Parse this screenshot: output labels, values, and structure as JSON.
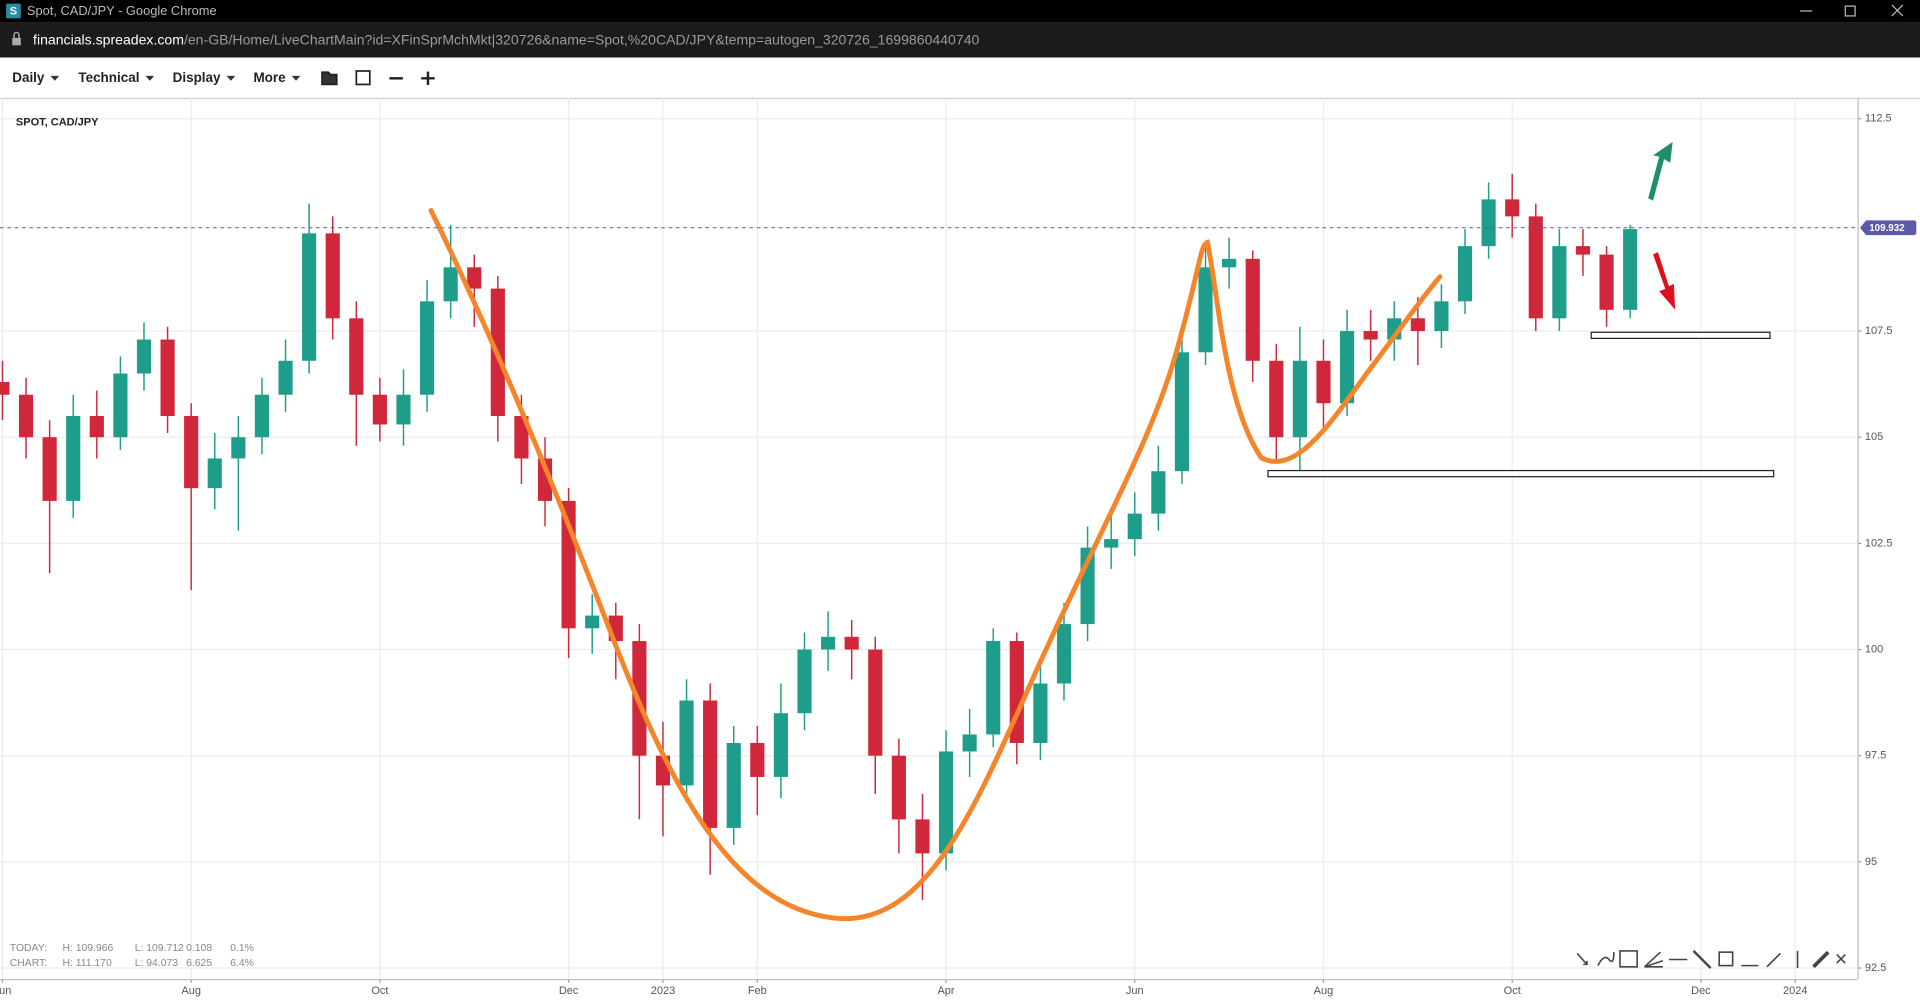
{
  "window": {
    "title": "Spot, CAD/JPY - Google Chrome"
  },
  "address_bar": {
    "domain": "financials.spreadex.com",
    "path": "/en-GB/Home/LiveChartMain?id=XFinSprMchMkt|320726&name=Spot,%20CAD/JPY&temp=autogen_320726_1699860440740"
  },
  "toolbar": {
    "menus": [
      "Daily",
      "Technical",
      "Display",
      "More"
    ]
  },
  "chart_data": {
    "type": "candlestick",
    "title": "SPOT, CAD/JPY",
    "x": [
      0,
      0.25,
      0.5,
      0.75,
      1,
      1.25,
      1.5,
      1.75,
      2,
      2.25,
      2.5,
      2.75,
      3,
      3.25,
      3.5,
      3.75,
      4,
      4.25,
      4.5,
      4.75,
      5,
      5.25,
      5.5,
      5.75,
      6,
      6.25,
      6.5,
      6.75,
      7,
      7.25,
      7.5,
      7.75,
      8,
      8.25,
      8.5,
      8.75,
      9,
      9.25,
      9.5,
      9.75,
      10,
      10.25,
      10.5,
      10.75,
      11,
      11.25,
      11.5,
      11.75,
      12,
      12.25,
      12.5,
      12.75,
      13,
      13.25,
      13.5,
      13.75,
      14,
      14.25,
      14.5,
      14.75,
      15,
      15.25,
      15.5,
      15.75,
      16,
      16.25,
      16.5,
      16.75,
      17,
      17.25
    ],
    "open": [
      106.3,
      106.0,
      105.0,
      103.5,
      105.5,
      105.0,
      106.5,
      107.3,
      105.5,
      103.8,
      104.5,
      105.0,
      106.0,
      106.8,
      109.8,
      107.8,
      106.0,
      105.3,
      106.0,
      108.2,
      109.0,
      108.5,
      105.5,
      104.5,
      103.5,
      100.5,
      100.8,
      100.2,
      97.5,
      96.8,
      98.8,
      95.8,
      97.8,
      97.0,
      98.5,
      100.0,
      100.3,
      100.0,
      97.5,
      96.0,
      95.2,
      97.6,
      98.0,
      100.2,
      97.8,
      99.2,
      100.6,
      102.4,
      102.6,
      103.2,
      104.2,
      107.0,
      109.0,
      109.2,
      106.8,
      105.0,
      106.8,
      105.8,
      107.5,
      107.3,
      107.8,
      107.5,
      108.2,
      109.5,
      110.6,
      110.2,
      107.8,
      109.5,
      109.3,
      108.0
    ],
    "high": [
      106.8,
      106.4,
      105.4,
      106.0,
      106.1,
      106.9,
      107.7,
      107.6,
      105.8,
      105.1,
      105.5,
      106.4,
      107.3,
      110.5,
      110.2,
      108.2,
      106.4,
      106.6,
      108.7,
      110.0,
      109.3,
      108.8,
      106.0,
      105.0,
      103.8,
      101.3,
      101.1,
      100.6,
      98.3,
      99.3,
      99.2,
      98.2,
      98.2,
      99.2,
      100.4,
      100.9,
      100.7,
      100.3,
      97.9,
      96.6,
      98.1,
      98.6,
      100.5,
      100.4,
      99.7,
      101.1,
      102.9,
      103.2,
      103.7,
      104.8,
      107.6,
      109.5,
      109.7,
      109.4,
      107.2,
      107.6,
      107.3,
      108.0,
      108.0,
      108.2,
      108.3,
      108.6,
      109.9,
      111.0,
      111.2,
      110.5,
      109.9,
      109.9,
      109.5,
      110.0
    ],
    "low": [
      105.4,
      104.5,
      101.8,
      103.1,
      104.5,
      104.7,
      106.1,
      105.1,
      101.4,
      103.3,
      102.8,
      104.6,
      105.6,
      106.5,
      107.3,
      104.8,
      104.9,
      104.8,
      105.6,
      107.8,
      107.6,
      104.9,
      103.9,
      102.9,
      99.8,
      99.9,
      99.3,
      96.0,
      95.6,
      96.4,
      94.7,
      95.4,
      96.1,
      96.5,
      98.1,
      99.5,
      99.3,
      96.6,
      95.2,
      94.1,
      94.8,
      97.0,
      97.7,
      97.3,
      97.4,
      98.8,
      100.2,
      101.9,
      102.2,
      102.8,
      103.9,
      106.7,
      108.5,
      106.3,
      104.4,
      104.2,
      105.2,
      105.5,
      106.8,
      106.8,
      106.7,
      107.1,
      107.9,
      109.2,
      109.7,
      107.5,
      107.5,
      108.8,
      107.6,
      107.8
    ],
    "close": [
      106.0,
      105.0,
      103.5,
      105.5,
      105.0,
      106.5,
      107.3,
      105.5,
      103.8,
      104.5,
      105.0,
      106.0,
      106.8,
      109.8,
      107.8,
      106.0,
      105.3,
      106.0,
      108.2,
      109.0,
      108.5,
      105.5,
      104.5,
      103.5,
      100.5,
      100.8,
      100.2,
      97.5,
      96.8,
      98.8,
      95.8,
      97.8,
      97.0,
      98.5,
      100.0,
      100.3,
      100.0,
      97.5,
      96.0,
      95.2,
      97.6,
      98.0,
      100.2,
      97.8,
      99.2,
      100.6,
      102.4,
      102.6,
      103.2,
      104.2,
      107.0,
      109.0,
      109.2,
      106.8,
      105.0,
      106.8,
      105.8,
      107.5,
      107.3,
      107.8,
      107.5,
      108.2,
      109.5,
      110.6,
      110.2,
      107.8,
      109.5,
      109.3,
      108.0,
      109.9
    ],
    "up_color": "#1e9e8a",
    "down_color": "#d0283a",
    "xlim": [
      -0.026,
      19.66
    ],
    "xticks": [
      {
        "value": 0,
        "label": "Jun"
      },
      {
        "value": 2,
        "label": "Aug"
      },
      {
        "value": 4,
        "label": "Oct"
      },
      {
        "value": 6,
        "label": "Dec"
      },
      {
        "value": 7,
        "label": "2023"
      },
      {
        "value": 8,
        "label": "Feb"
      },
      {
        "value": 10,
        "label": "Apr"
      },
      {
        "value": 12,
        "label": "Jun"
      },
      {
        "value": 14,
        "label": "Aug"
      },
      {
        "value": 16,
        "label": "Oct"
      },
      {
        "value": 18,
        "label": "Dec"
      },
      {
        "value": 19,
        "label": "2024"
      }
    ],
    "ylim": [
      92.24,
      112.99
    ],
    "yticks": [
      92.5,
      95,
      97.5,
      100,
      102.5,
      105,
      107.5,
      112.5
    ],
    "grid": true,
    "last_price": 109.932,
    "last_price_color": "#5c5aa8"
  },
  "stats": {
    "rows": [
      [
        "TODAY:",
        "H: 109.966",
        "L: 109.712",
        "0.108",
        "0.1%"
      ],
      [
        "CHART:",
        "H: 111.170",
        "L: 94.073",
        "6.625",
        "6.4%"
      ]
    ]
  }
}
